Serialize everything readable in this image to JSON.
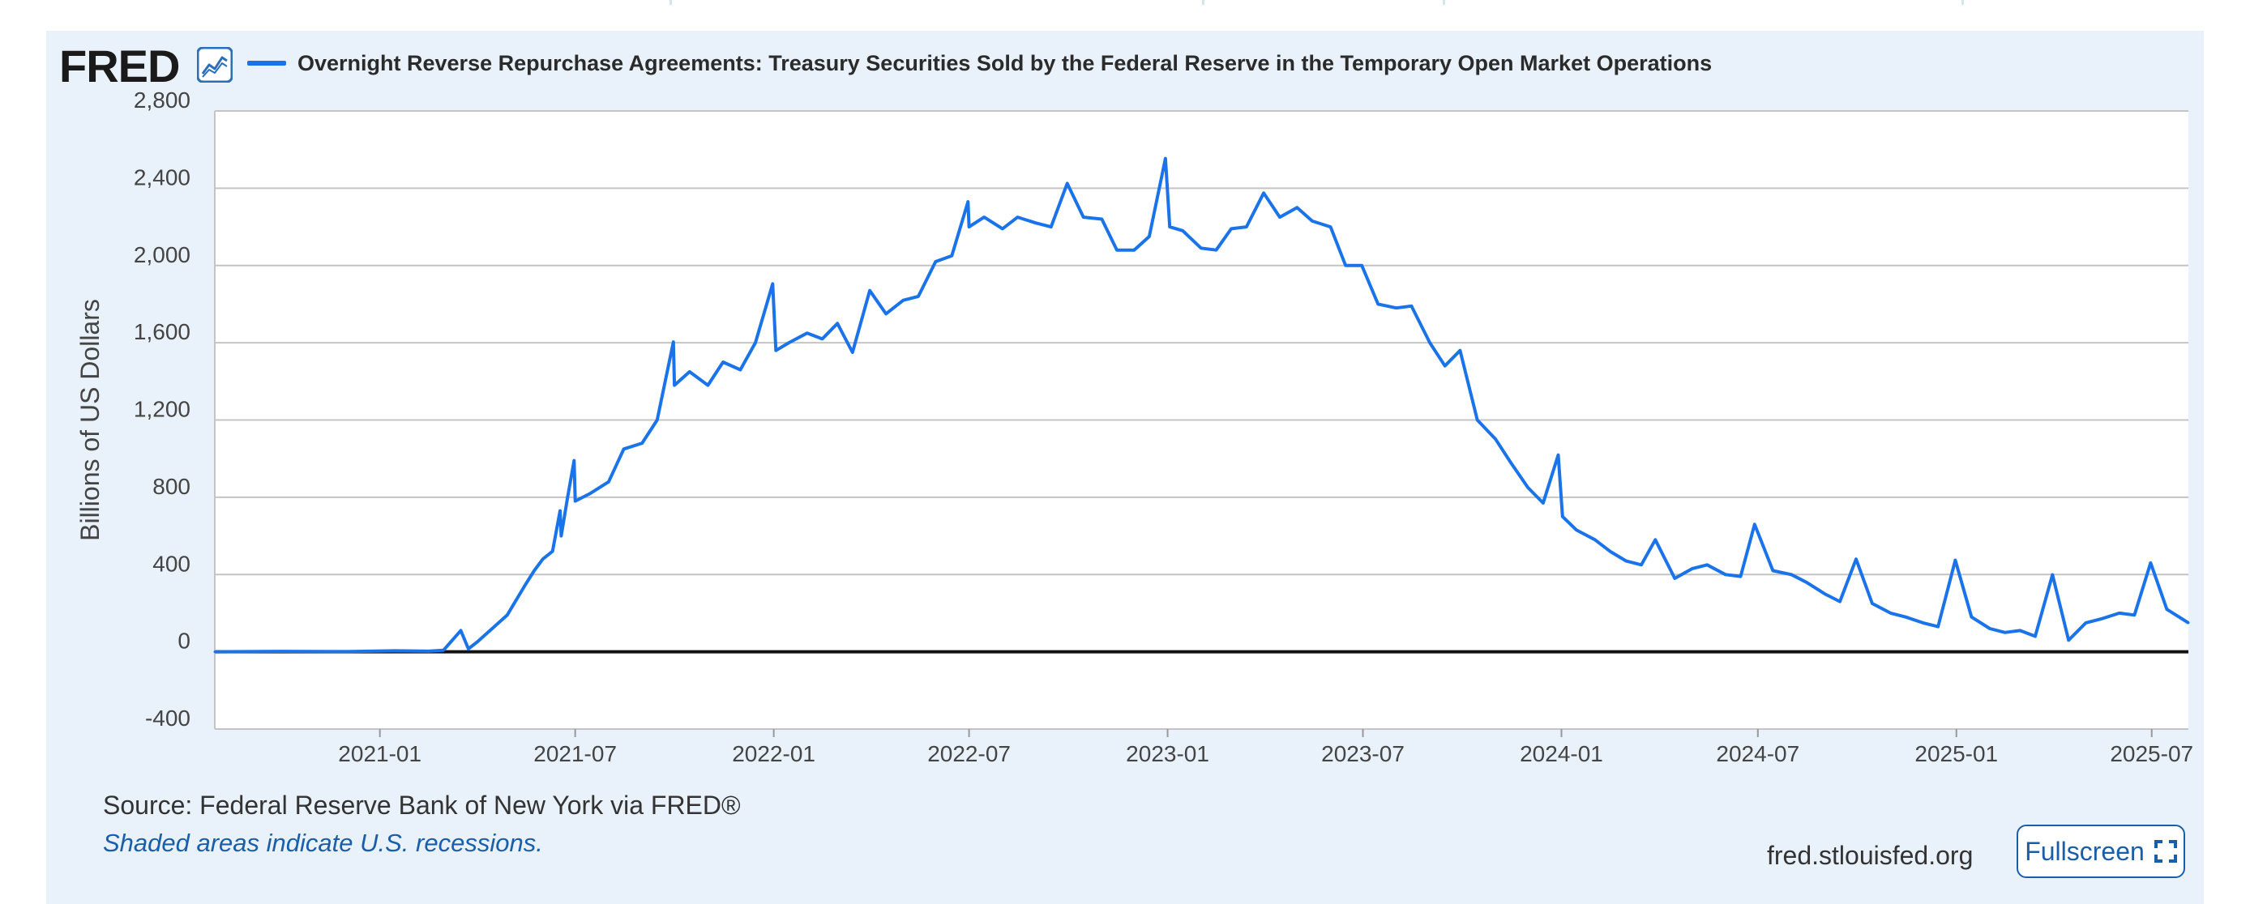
{
  "branding": {
    "logo_text": "FRED",
    "logo_icon": "line-chart-icon"
  },
  "legend": {
    "label": "Overnight Reverse Repurchase Agreements: Treasury Securities Sold by the Federal Reserve in the Temporary Open Market Operations",
    "color": "#1a73e8"
  },
  "footer": {
    "source": "Source: Federal Reserve Bank of New York via FRED®",
    "recession_note": "Shaded areas indicate U.S. recessions.",
    "site": "fred.stlouisfed.org",
    "fullscreen_label": "Fullscreen",
    "fullscreen_icon": "expand-icon"
  },
  "colors": {
    "panel_bg": "#e9f1fa",
    "line": "#1a73e8",
    "link": "#1a5ea8"
  },
  "chart_data": {
    "type": "line",
    "title": "",
    "xlabel": "",
    "ylabel": "Billions of US Dollars",
    "ylim": [
      -400,
      2800
    ],
    "xlim": [
      "2020-08-01",
      "2025-08-04"
    ],
    "yticks": [
      -400,
      0,
      400,
      800,
      1200,
      1600,
      2000,
      2400,
      2800
    ],
    "ytick_labels": [
      "-400",
      "0",
      "400",
      "800",
      "1,200",
      "1,600",
      "2,000",
      "2,400",
      "2,800"
    ],
    "xticks": [
      "2021-01-01",
      "2021-07-01",
      "2022-01-01",
      "2022-07-01",
      "2023-01-01",
      "2023-07-01",
      "2024-01-01",
      "2024-07-01",
      "2025-01-01",
      "2025-07-01"
    ],
    "xtick_labels": [
      "2021-01",
      "2021-07",
      "2022-01",
      "2022-07",
      "2023-01",
      "2023-07",
      "2024-01",
      "2024-07",
      "2025-01",
      "2025-07"
    ],
    "grid": "horizontal",
    "legend": "top-left",
    "series": [
      {
        "name": "Overnight Reverse Repurchase Agreements: Treasury Securities Sold by the Federal Reserve in the Temporary Open Market Operations",
        "points": [
          [
            "2020-08-01",
            0
          ],
          [
            "2020-10-01",
            2
          ],
          [
            "2020-12-01",
            1
          ],
          [
            "2021-01-15",
            5
          ],
          [
            "2021-02-15",
            3
          ],
          [
            "2021-03-01",
            8
          ],
          [
            "2021-03-17",
            110
          ],
          [
            "2021-03-24",
            15
          ],
          [
            "2021-04-01",
            50
          ],
          [
            "2021-04-15",
            120
          ],
          [
            "2021-04-29",
            190
          ],
          [
            "2021-05-15",
            340
          ],
          [
            "2021-05-24",
            420
          ],
          [
            "2021-06-01",
            480
          ],
          [
            "2021-06-10",
            520
          ],
          [
            "2021-06-17",
            730
          ],
          [
            "2021-06-18",
            600
          ],
          [
            "2021-06-24",
            800
          ],
          [
            "2021-06-30",
            990
          ],
          [
            "2021-07-01",
            780
          ],
          [
            "2021-07-15",
            820
          ],
          [
            "2021-08-01",
            880
          ],
          [
            "2021-08-15",
            1050
          ],
          [
            "2021-09-01",
            1080
          ],
          [
            "2021-09-15",
            1200
          ],
          [
            "2021-09-30",
            1604
          ],
          [
            "2021-10-01",
            1380
          ],
          [
            "2021-10-15",
            1450
          ],
          [
            "2021-11-01",
            1380
          ],
          [
            "2021-11-15",
            1500
          ],
          [
            "2021-12-01",
            1460
          ],
          [
            "2021-12-15",
            1600
          ],
          [
            "2021-12-31",
            1905
          ],
          [
            "2022-01-03",
            1560
          ],
          [
            "2022-01-15",
            1600
          ],
          [
            "2022-02-01",
            1650
          ],
          [
            "2022-02-15",
            1620
          ],
          [
            "2022-03-01",
            1700
          ],
          [
            "2022-03-15",
            1550
          ],
          [
            "2022-03-31",
            1870
          ],
          [
            "2022-04-15",
            1750
          ],
          [
            "2022-05-01",
            1820
          ],
          [
            "2022-05-15",
            1840
          ],
          [
            "2022-05-31",
            2020
          ],
          [
            "2022-06-15",
            2050
          ],
          [
            "2022-06-30",
            2330
          ],
          [
            "2022-07-01",
            2200
          ],
          [
            "2022-07-15",
            2250
          ],
          [
            "2022-08-01",
            2190
          ],
          [
            "2022-08-15",
            2250
          ],
          [
            "2022-09-01",
            2220
          ],
          [
            "2022-09-15",
            2200
          ],
          [
            "2022-09-30",
            2425
          ],
          [
            "2022-10-15",
            2250
          ],
          [
            "2022-11-01",
            2240
          ],
          [
            "2022-11-15",
            2080
          ],
          [
            "2022-12-01",
            2080
          ],
          [
            "2022-12-15",
            2150
          ],
          [
            "2022-12-30",
            2554
          ],
          [
            "2023-01-03",
            2200
          ],
          [
            "2023-01-15",
            2180
          ],
          [
            "2023-02-01",
            2090
          ],
          [
            "2023-02-15",
            2080
          ],
          [
            "2023-03-01",
            2190
          ],
          [
            "2023-03-15",
            2200
          ],
          [
            "2023-03-31",
            2375
          ],
          [
            "2023-04-15",
            2250
          ],
          [
            "2023-05-01",
            2300
          ],
          [
            "2023-05-15",
            2230
          ],
          [
            "2023-06-01",
            2200
          ],
          [
            "2023-06-15",
            2000
          ],
          [
            "2023-06-30",
            2000
          ],
          [
            "2023-07-15",
            1800
          ],
          [
            "2023-08-01",
            1780
          ],
          [
            "2023-08-15",
            1790
          ],
          [
            "2023-09-01",
            1600
          ],
          [
            "2023-09-15",
            1480
          ],
          [
            "2023-09-29",
            1560
          ],
          [
            "2023-10-15",
            1200
          ],
          [
            "2023-11-01",
            1100
          ],
          [
            "2023-11-15",
            980
          ],
          [
            "2023-12-01",
            850
          ],
          [
            "2023-12-15",
            770
          ],
          [
            "2023-12-29",
            1019
          ],
          [
            "2024-01-02",
            700
          ],
          [
            "2024-01-15",
            630
          ],
          [
            "2024-02-01",
            580
          ],
          [
            "2024-02-15",
            520
          ],
          [
            "2024-03-01",
            470
          ],
          [
            "2024-03-15",
            450
          ],
          [
            "2024-03-28",
            580
          ],
          [
            "2024-04-15",
            380
          ],
          [
            "2024-05-01",
            430
          ],
          [
            "2024-05-15",
            450
          ],
          [
            "2024-06-01",
            400
          ],
          [
            "2024-06-15",
            390
          ],
          [
            "2024-06-28",
            660
          ],
          [
            "2024-07-15",
            420
          ],
          [
            "2024-08-01",
            400
          ],
          [
            "2024-08-15",
            360
          ],
          [
            "2024-09-01",
            300
          ],
          [
            "2024-09-15",
            260
          ],
          [
            "2024-09-30",
            480
          ],
          [
            "2024-10-15",
            250
          ],
          [
            "2024-11-01",
            200
          ],
          [
            "2024-11-15",
            180
          ],
          [
            "2024-12-01",
            150
          ],
          [
            "2024-12-15",
            130
          ],
          [
            "2024-12-31",
            474
          ],
          [
            "2025-01-15",
            180
          ],
          [
            "2025-02-01",
            120
          ],
          [
            "2025-02-15",
            100
          ],
          [
            "2025-03-01",
            110
          ],
          [
            "2025-03-15",
            80
          ],
          [
            "2025-03-31",
            399
          ],
          [
            "2025-04-15",
            60
          ],
          [
            "2025-05-01",
            150
          ],
          [
            "2025-05-15",
            170
          ],
          [
            "2025-06-01",
            200
          ],
          [
            "2025-06-15",
            190
          ],
          [
            "2025-06-30",
            460
          ],
          [
            "2025-07-15",
            220
          ],
          [
            "2025-08-04",
            150
          ]
        ]
      }
    ]
  }
}
